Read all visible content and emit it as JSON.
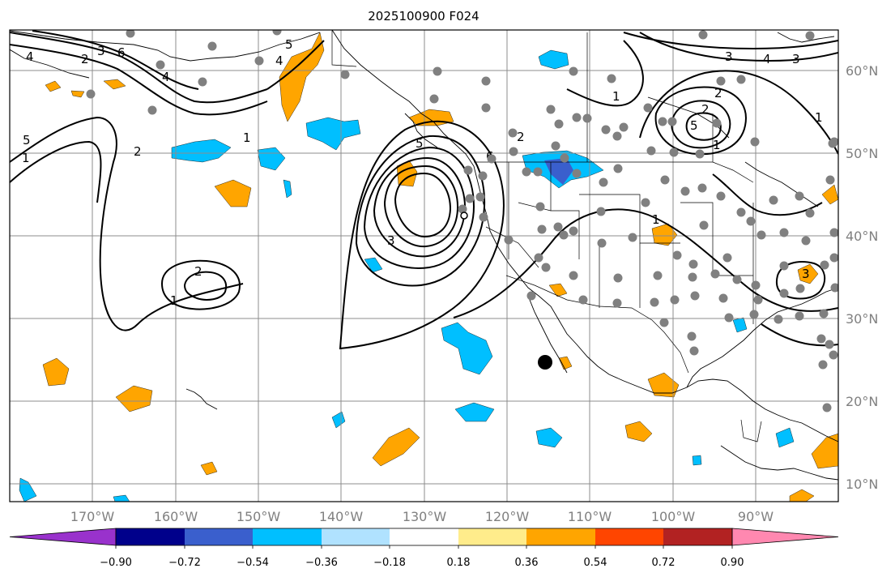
{
  "title": "2025100900 F024",
  "lon_labels": [
    "170°W",
    "160°W",
    "150°W",
    "140°W",
    "130°W",
    "120°W",
    "110°W",
    "100°W",
    "90°W"
  ],
  "lat_labels": [
    "60°N",
    "50°N",
    "40°N",
    "30°N",
    "20°N",
    "10°N"
  ],
  "colorbar": {
    "tick_labels": [
      "−0.90",
      "−0.72",
      "−0.54",
      "−0.36",
      "−0.18",
      "0.18",
      "0.36",
      "0.54",
      "0.72",
      "0.90"
    ],
    "colors": [
      "#9932cc",
      "#00008b",
      "#3a5fcd",
      "#00bfff",
      "#b0e2ff",
      "#ffffff",
      "#ffec8b",
      "#ffa500",
      "#ff4500",
      "#b22222",
      "#ff88b0"
    ]
  },
  "contour_labels": [
    "1",
    "2",
    "3",
    "4",
    "5",
    "6",
    "1",
    "2",
    "1",
    "2",
    "3",
    "4",
    "5",
    "6",
    "1",
    "2",
    "3",
    "4",
    "5",
    "1",
    "2",
    "3",
    "1",
    "2",
    "3",
    "4",
    "5",
    "1"
  ],
  "marker_color": "#808080",
  "highlight_marker": "black-dot"
}
